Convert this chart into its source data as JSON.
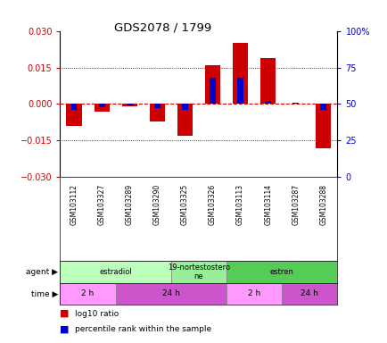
{
  "title": "GDS2078 / 1799",
  "samples": [
    "GSM103112",
    "GSM103327",
    "GSM103289",
    "GSM103290",
    "GSM103325",
    "GSM103326",
    "GSM103113",
    "GSM103114",
    "GSM103287",
    "GSM103288"
  ],
  "log10_ratio": [
    -0.009,
    -0.003,
    -0.001,
    -0.007,
    -0.013,
    0.016,
    0.025,
    0.019,
    0.0,
    -0.018
  ],
  "percentile_rank": [
    46,
    48,
    49,
    47,
    46,
    68,
    68,
    52,
    51,
    46
  ],
  "ylim": [
    -0.03,
    0.03
  ],
  "yticks_left": [
    -0.03,
    -0.015,
    0,
    0.015,
    0.03
  ],
  "yticks_right": [
    0,
    25,
    50,
    75,
    100
  ],
  "bar_color_red": "#cc0000",
  "bar_color_blue": "#0000cc",
  "agent_groups": [
    {
      "label": "estradiol",
      "start": 0,
      "end": 4,
      "color": "#bbffbb"
    },
    {
      "label": "19-nortestostero\nne",
      "start": 4,
      "end": 6,
      "color": "#99ee99"
    },
    {
      "label": "estren",
      "start": 6,
      "end": 10,
      "color": "#55cc55"
    }
  ],
  "time_groups": [
    {
      "label": "2 h",
      "start": 0,
      "end": 2,
      "color": "#ff99ff"
    },
    {
      "label": "24 h",
      "start": 2,
      "end": 6,
      "color": "#cc55cc"
    },
    {
      "label": "2 h",
      "start": 6,
      "end": 8,
      "color": "#ff99ff"
    },
    {
      "label": "24 h",
      "start": 8,
      "end": 10,
      "color": "#cc55cc"
    }
  ]
}
